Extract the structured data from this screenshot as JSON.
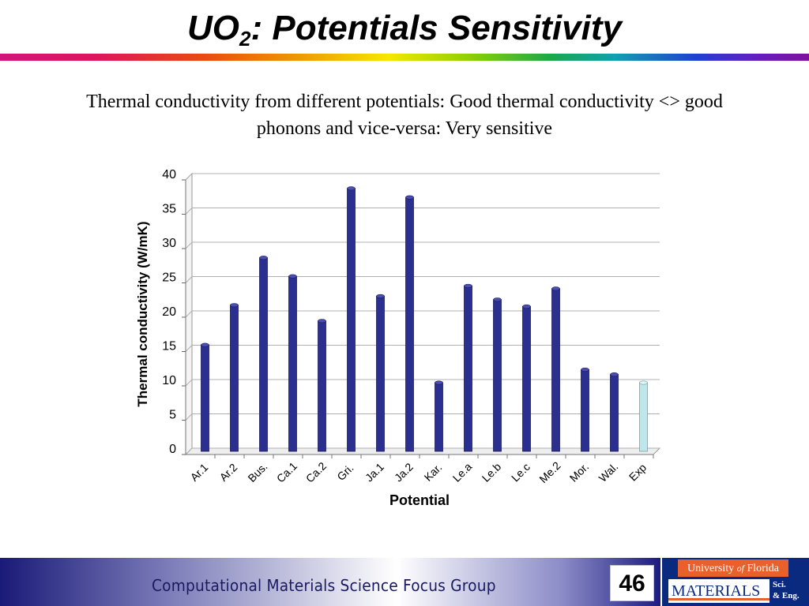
{
  "slide": {
    "title_main": "UO",
    "title_sub": "2",
    "title_rest": ": Potentials Sensitivity",
    "subtitle_line1": "Thermal conductivity from different potentials: Good thermal conductivity <> good",
    "subtitle_line2": "phonons and vice-versa: Very sensitive",
    "footer_text": "Computational Materials Science Focus Group",
    "page_number": "46",
    "uf_university": "University",
    "uf_of": "of",
    "uf_florida": "Florida",
    "uf_materials": "MATERIALS",
    "uf_sci": "Sci.",
    "uf_eng": "& Eng."
  },
  "colors": {
    "bar_main": "#2b2f8f",
    "bar_highlight": "#bfe6ea",
    "grid": "#b0b0b0"
  },
  "chart_data": {
    "type": "bar",
    "xlabel": "Potential",
    "ylabel": "Thermal conductivity (W/mK)",
    "ylim": [
      0,
      40
    ],
    "yticks": [
      "0",
      "5",
      "10",
      "15",
      "20",
      "25",
      "30",
      "35",
      "40"
    ],
    "grid": true,
    "categories": [
      "Ar.1",
      "Ar.2",
      "Bus.",
      "Ca.1",
      "Ca.2",
      "Gri.",
      "Ja.1",
      "Ja.2",
      "Kar.",
      "Le.a",
      "Le.b",
      "Le.c",
      "Me.2",
      "Mor.",
      "Wal.",
      "Exp"
    ],
    "values": [
      15.5,
      21.3,
      28.2,
      25.5,
      19.0,
      38.3,
      22.6,
      37.0,
      10.0,
      24.1,
      22.1,
      21.1,
      23.7,
      11.9,
      11.2,
      10.0
    ],
    "highlight_category": "Exp"
  }
}
